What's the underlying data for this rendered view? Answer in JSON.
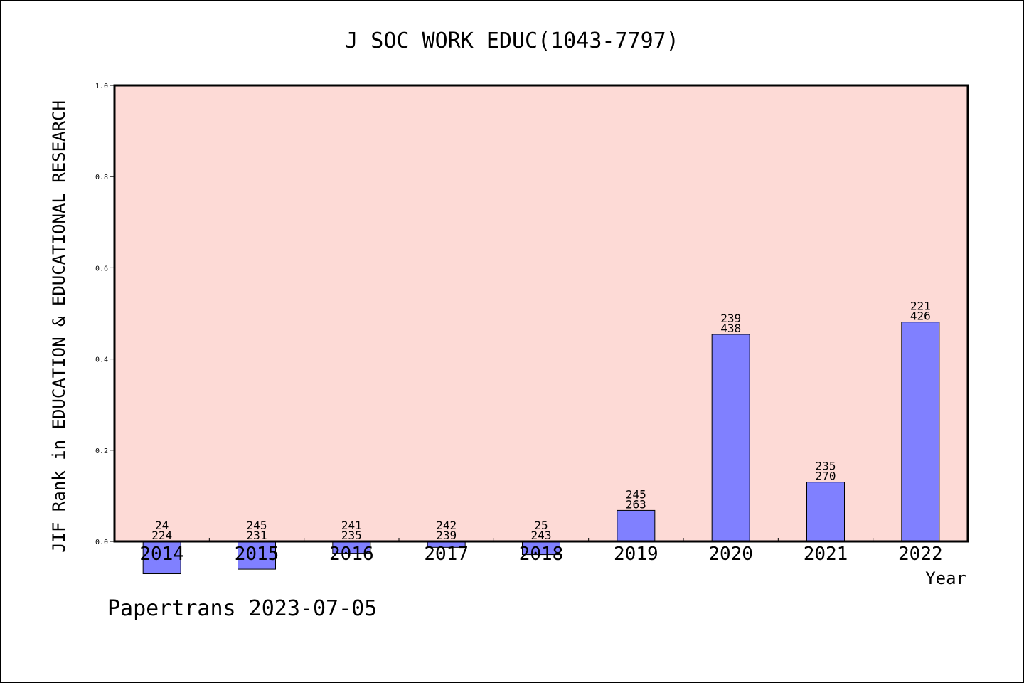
{
  "chart_data": {
    "type": "bar",
    "title": "J SOC WORK EDUC(1043-7797)",
    "xlabel": "Year",
    "ylabel": "JIF Rank in EDUCATION & EDUCATIONAL RESEARCH",
    "ylim": [
      0,
      1.0
    ],
    "yticks": [
      "0.0",
      "0.2",
      "0.4",
      "0.6",
      "0.8",
      "1.0"
    ],
    "categories": [
      "2014",
      "2015",
      "2016",
      "2017",
      "2018",
      "2019",
      "2020",
      "2021",
      "2022"
    ],
    "values": [
      -0.071,
      -0.061,
      -0.026,
      -0.013,
      -0.029,
      0.068,
      0.454,
      0.13,
      0.481
    ],
    "rank_labels": [
      "24",
      "245",
      "241",
      "242",
      "25",
      "245",
      "239",
      "235",
      "221"
    ],
    "total_labels": [
      "224",
      "231",
      "235",
      "239",
      "243",
      "263",
      "438",
      "270",
      "426"
    ],
    "footer": "Papertrans 2023-07-05",
    "colors": {
      "plot_bg": "#fddad6",
      "bar": "#8080ff"
    }
  }
}
